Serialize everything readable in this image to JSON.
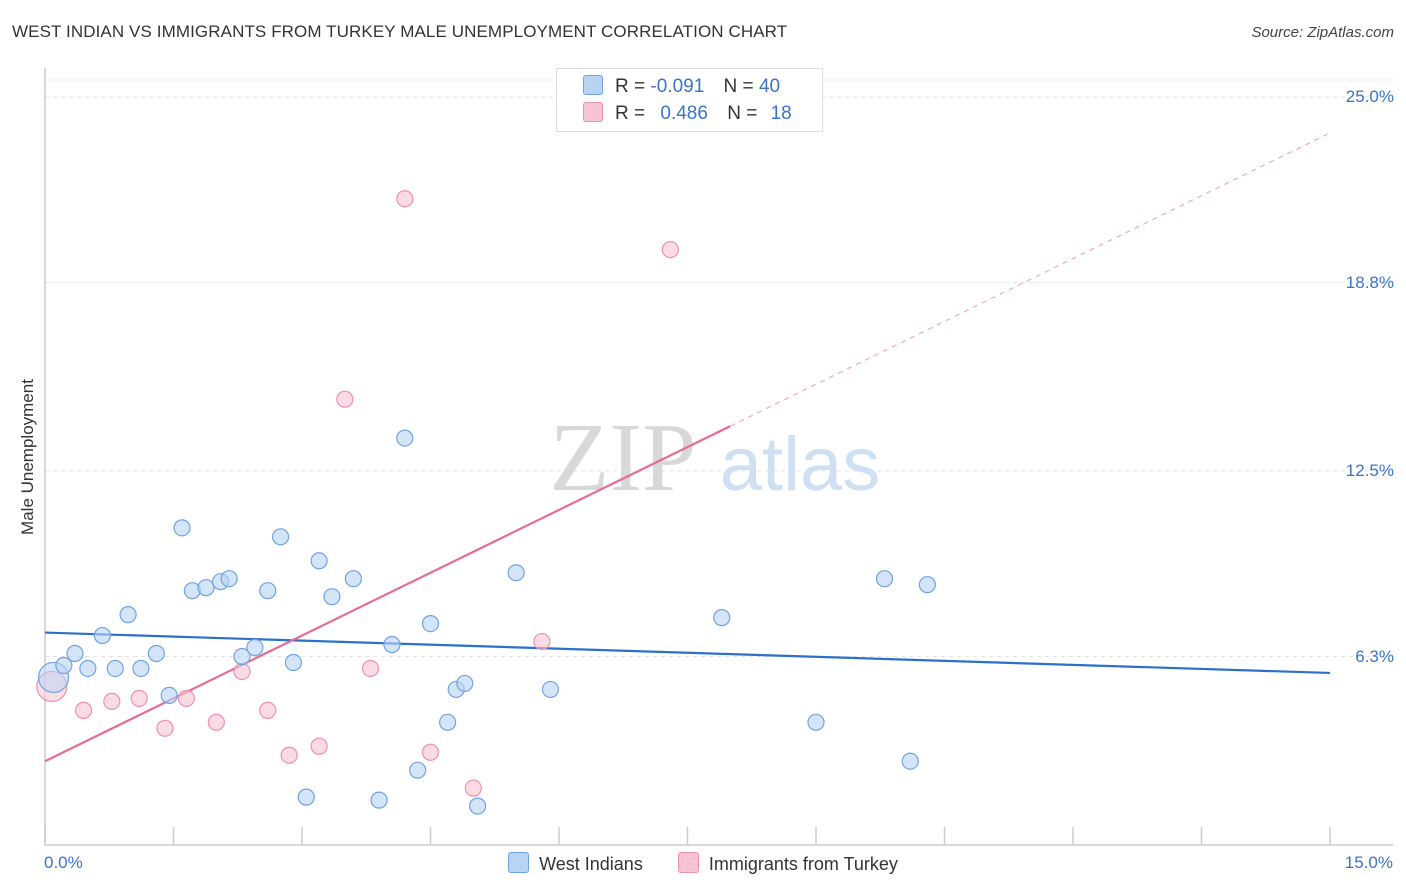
{
  "header": {
    "title": "WEST INDIAN VS IMMIGRANTS FROM TURKEY MALE UNEMPLOYMENT CORRELATION CHART",
    "source": "Source: ZipAtlas.com"
  },
  "watermark": {
    "zip": "ZIP",
    "atlas": "atlas"
  },
  "legend": {
    "rows": [
      {
        "r_label": "R =",
        "r_value": "-0.091",
        "n_label": "N =",
        "n_value": "40",
        "color": "#b9d3f5"
      },
      {
        "r_label": "R =",
        "r_value": "0.486",
        "n_label": "N =",
        "n_value": "18",
        "color": "#f8c4d3"
      }
    ]
  },
  "bottom_legend": [
    {
      "label": "West Indians",
      "color": "#b9d3f5"
    },
    {
      "label": "Immigrants from Turkey",
      "color": "#f8c4d3"
    }
  ],
  "chart_data": {
    "type": "scatter",
    "title": "WEST INDIAN VS IMMIGRANTS FROM TURKEY MALE UNEMPLOYMENT CORRELATION CHART",
    "xlabel": "",
    "ylabel": "Male Unemployment",
    "xlim": [
      0,
      15
    ],
    "ylim": [
      0,
      25
    ],
    "x_tick_labels": [
      "0.0%",
      "15.0%"
    ],
    "y_ticks": [
      {
        "value": 6.3,
        "label": "6.3%"
      },
      {
        "value": 12.5,
        "label": "12.5%"
      },
      {
        "value": 18.8,
        "label": "18.8%"
      },
      {
        "value": 25.0,
        "label": "25.0%"
      }
    ],
    "grid": true,
    "series": [
      {
        "name": "West Indians",
        "color": "#6fa3e0",
        "fill": "#b9d3f5",
        "points": [
          {
            "x": 0.1,
            "y": 5.6
          },
          {
            "x": 0.22,
            "y": 6.0
          },
          {
            "x": 0.35,
            "y": 6.4
          },
          {
            "x": 0.5,
            "y": 5.9
          },
          {
            "x": 0.67,
            "y": 7.0
          },
          {
            "x": 0.82,
            "y": 5.9
          },
          {
            "x": 0.97,
            "y": 7.7
          },
          {
            "x": 1.12,
            "y": 5.9
          },
          {
            "x": 1.3,
            "y": 6.4
          },
          {
            "x": 1.45,
            "y": 5.0
          },
          {
            "x": 1.6,
            "y": 10.6
          },
          {
            "x": 1.72,
            "y": 8.5
          },
          {
            "x": 1.88,
            "y": 8.6
          },
          {
            "x": 2.05,
            "y": 8.8
          },
          {
            "x": 2.15,
            "y": 8.9
          },
          {
            "x": 2.3,
            "y": 6.3
          },
          {
            "x": 2.45,
            "y": 6.6
          },
          {
            "x": 2.6,
            "y": 8.5
          },
          {
            "x": 2.75,
            "y": 10.3
          },
          {
            "x": 2.9,
            "y": 6.1
          },
          {
            "x": 3.05,
            "y": 1.6
          },
          {
            "x": 3.2,
            "y": 9.5
          },
          {
            "x": 3.35,
            "y": 8.3
          },
          {
            "x": 3.6,
            "y": 8.9
          },
          {
            "x": 3.9,
            "y": 1.5
          },
          {
            "x": 4.05,
            "y": 6.7
          },
          {
            "x": 4.2,
            "y": 13.6
          },
          {
            "x": 4.35,
            "y": 2.5
          },
          {
            "x": 4.5,
            "y": 7.4
          },
          {
            "x": 4.7,
            "y": 4.1
          },
          {
            "x": 4.8,
            "y": 5.2
          },
          {
            "x": 4.9,
            "y": 5.4
          },
          {
            "x": 5.05,
            "y": 1.3
          },
          {
            "x": 5.5,
            "y": 9.1
          },
          {
            "x": 5.9,
            "y": 5.2
          },
          {
            "x": 7.9,
            "y": 7.6
          },
          {
            "x": 9.0,
            "y": 4.1
          },
          {
            "x": 9.8,
            "y": 8.9
          },
          {
            "x": 10.1,
            "y": 2.8
          },
          {
            "x": 10.3,
            "y": 8.7
          }
        ],
        "trend": {
          "x0": 0,
          "y0": 7.1,
          "x1": 15,
          "y1": 5.75
        }
      },
      {
        "name": "Immigrants from Turkey",
        "color": "#f08fae",
        "fill": "#f8c4d3",
        "points": [
          {
            "x": 0.08,
            "y": 5.3
          },
          {
            "x": 0.45,
            "y": 4.5
          },
          {
            "x": 0.78,
            "y": 4.8
          },
          {
            "x": 1.1,
            "y": 4.9
          },
          {
            "x": 1.4,
            "y": 3.9
          },
          {
            "x": 1.65,
            "y": 4.9
          },
          {
            "x": 2.0,
            "y": 4.1
          },
          {
            "x": 2.3,
            "y": 5.8
          },
          {
            "x": 2.6,
            "y": 4.5
          },
          {
            "x": 2.85,
            "y": 3.0
          },
          {
            "x": 3.2,
            "y": 3.3
          },
          {
            "x": 3.5,
            "y": 14.9
          },
          {
            "x": 3.8,
            "y": 5.9
          },
          {
            "x": 4.2,
            "y": 21.6
          },
          {
            "x": 4.5,
            "y": 3.1
          },
          {
            "x": 5.0,
            "y": 1.9
          },
          {
            "x": 5.8,
            "y": 6.8
          },
          {
            "x": 7.3,
            "y": 19.9
          }
        ],
        "trend": {
          "x0": 0,
          "y0": 2.8,
          "x1": 8.0,
          "y1": 14.0
        },
        "trend_dashed": {
          "x0": 8.0,
          "y0": 14.0,
          "x1": 15,
          "y1": 23.8
        }
      }
    ]
  }
}
